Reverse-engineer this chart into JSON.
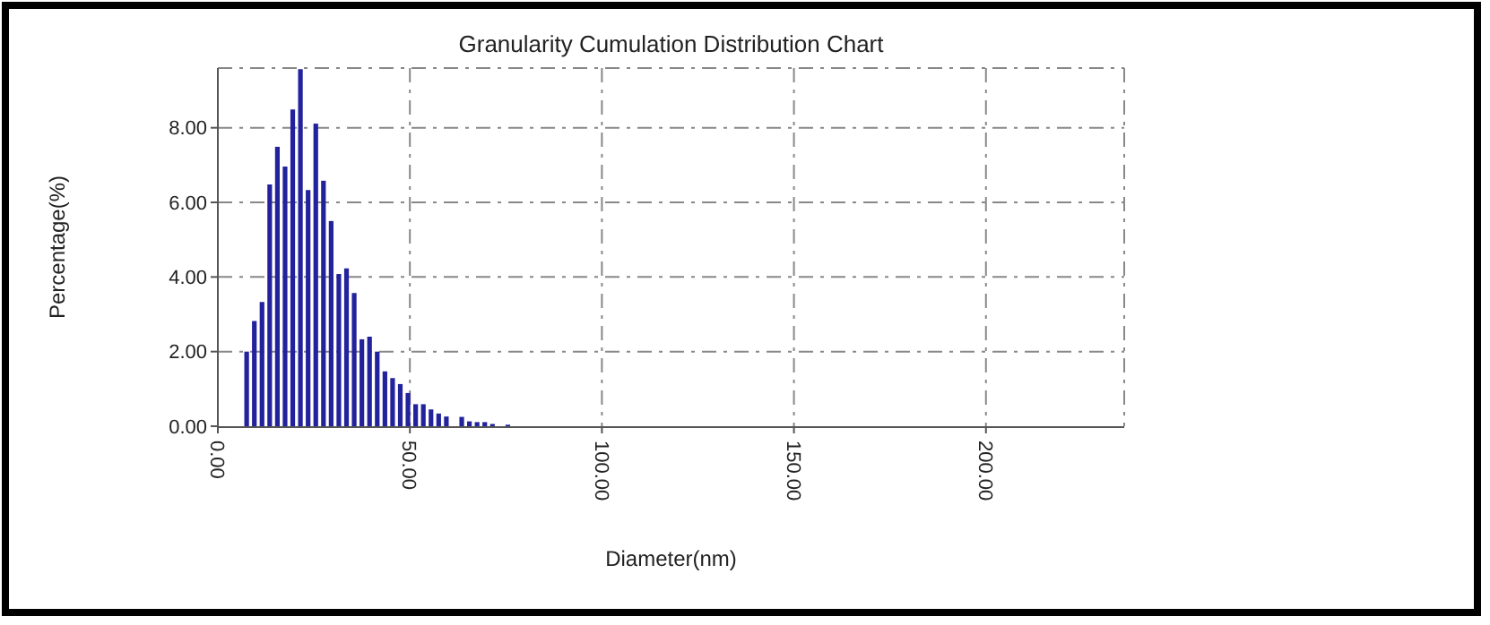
{
  "chart_data": {
    "type": "bar",
    "title": "Granularity Cumulation Distribution  Chart",
    "xlabel": "Diameter(nm)",
    "ylabel": "Percentage(%)",
    "x": [
      7.5,
      9.5,
      11.5,
      13.5,
      15.5,
      17.5,
      19.5,
      21.5,
      23.5,
      25.5,
      27.5,
      29.5,
      31.5,
      33.5,
      35.5,
      37.5,
      39.5,
      41.5,
      43.5,
      45.5,
      47.5,
      49.5,
      51.5,
      53.5,
      55.5,
      57.5,
      59.5,
      63.5,
      65.5,
      67.5,
      69.5,
      71.5,
      75.5
    ],
    "values": [
      2.0,
      2.82,
      3.33,
      6.48,
      7.49,
      6.96,
      8.49,
      9.57,
      6.33,
      8.11,
      6.58,
      5.5,
      4.08,
      4.23,
      3.57,
      2.33,
      2.4,
      2.0,
      1.47,
      1.29,
      1.13,
      0.89,
      0.59,
      0.59,
      0.45,
      0.34,
      0.26,
      0.25,
      0.13,
      0.11,
      0.11,
      0.06,
      0.04
    ],
    "color": "#22229c",
    "xlim": [
      0,
      236
    ],
    "xticks": [
      {
        "value": 0,
        "label": "0.00"
      },
      {
        "value": 50,
        "label": "50.00"
      },
      {
        "value": 100,
        "label": "100.00"
      },
      {
        "value": 150,
        "label": "150.00"
      },
      {
        "value": 200,
        "label": "200.00"
      }
    ],
    "ylim": [
      0,
      9.6
    ],
    "yticks": [
      {
        "value": 0,
        "label": "0.00"
      },
      {
        "value": 2,
        "label": "2.00"
      },
      {
        "value": 4,
        "label": "4.00"
      },
      {
        "value": 6,
        "label": "6.00"
      },
      {
        "value": 8,
        "label": "8.00"
      }
    ],
    "grid": true
  }
}
